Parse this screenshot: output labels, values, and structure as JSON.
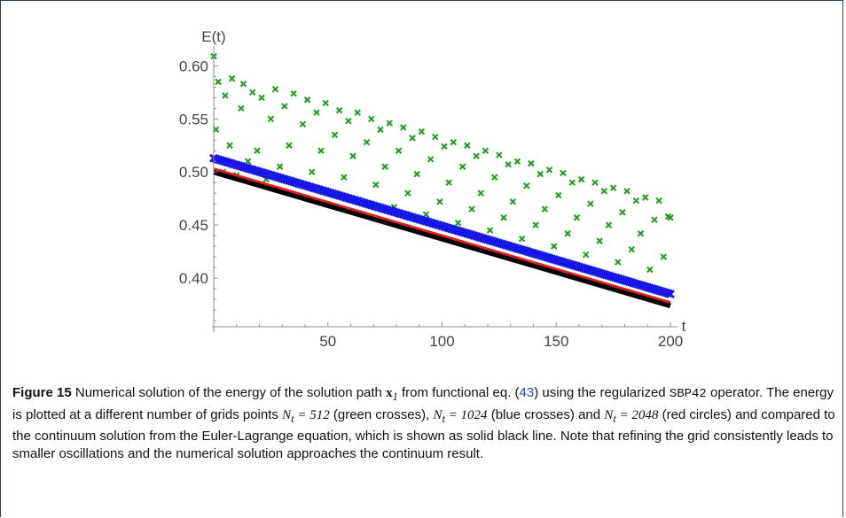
{
  "chart_data": {
    "type": "scatter",
    "title": "",
    "xlabel": "t",
    "ylabel": "E(t)",
    "xlim": [
      0,
      200
    ],
    "ylim": [
      0.355,
      0.612
    ],
    "x_ticks": [
      {
        "value": 50,
        "label": "50"
      },
      {
        "value": 100,
        "label": "100"
      },
      {
        "value": 150,
        "label": "150"
      },
      {
        "value": 200,
        "label": "200"
      }
    ],
    "y_ticks": [
      {
        "value": 0.4,
        "label": "0.40"
      },
      {
        "value": 0.45,
        "label": "0.45"
      },
      {
        "value": 0.5,
        "label": "0.50"
      },
      {
        "value": 0.55,
        "label": "0.55"
      },
      {
        "value": 0.6,
        "label": "0.60"
      }
    ],
    "series": [
      {
        "color": "#1f9b1f",
        "marker": "cross",
        "points": [
          [
            0,
            0.609
          ],
          [
            1,
            0.54
          ],
          [
            2,
            0.585
          ],
          [
            4,
            0.5
          ],
          [
            5,
            0.572
          ],
          [
            7,
            0.525
          ],
          [
            8,
            0.588
          ],
          [
            10,
            0.497
          ],
          [
            12,
            0.56
          ],
          [
            13,
            0.583
          ],
          [
            15,
            0.51
          ],
          [
            17,
            0.575
          ],
          [
            19,
            0.52
          ],
          [
            21,
            0.57
          ],
          [
            23,
            0.493
          ],
          [
            25,
            0.55
          ],
          [
            27,
            0.578
          ],
          [
            29,
            0.505
          ],
          [
            31,
            0.562
          ],
          [
            33,
            0.525
          ],
          [
            35,
            0.574
          ],
          [
            37,
            0.488
          ],
          [
            39,
            0.545
          ],
          [
            41,
            0.568
          ],
          [
            43,
            0.5
          ],
          [
            45,
            0.556
          ],
          [
            47,
            0.52
          ],
          [
            49,
            0.565
          ],
          [
            51,
            0.48
          ],
          [
            53,
            0.535
          ],
          [
            55,
            0.558
          ],
          [
            57,
            0.495
          ],
          [
            59,
            0.548
          ],
          [
            61,
            0.515
          ],
          [
            63,
            0.556
          ],
          [
            65,
            0.472
          ],
          [
            67,
            0.528
          ],
          [
            69,
            0.55
          ],
          [
            71,
            0.488
          ],
          [
            73,
            0.54
          ],
          [
            75,
            0.505
          ],
          [
            77,
            0.546
          ],
          [
            79,
            0.467
          ],
          [
            81,
            0.52
          ],
          [
            83,
            0.542
          ],
          [
            85,
            0.48
          ],
          [
            87,
            0.532
          ],
          [
            89,
            0.498
          ],
          [
            91,
            0.538
          ],
          [
            93,
            0.46
          ],
          [
            95,
            0.512
          ],
          [
            97,
            0.533
          ],
          [
            99,
            0.472
          ],
          [
            101,
            0.524
          ],
          [
            103,
            0.49
          ],
          [
            105,
            0.528
          ],
          [
            107,
            0.452
          ],
          [
            109,
            0.505
          ],
          [
            111,
            0.525
          ],
          [
            113,
            0.465
          ],
          [
            115,
            0.515
          ],
          [
            117,
            0.48
          ],
          [
            119,
            0.52
          ],
          [
            121,
            0.445
          ],
          [
            123,
            0.495
          ],
          [
            125,
            0.516
          ],
          [
            127,
            0.457
          ],
          [
            129,
            0.507
          ],
          [
            131,
            0.472
          ],
          [
            133,
            0.51
          ],
          [
            135,
            0.437
          ],
          [
            137,
            0.487
          ],
          [
            139,
            0.508
          ],
          [
            141,
            0.45
          ],
          [
            143,
            0.498
          ],
          [
            145,
            0.465
          ],
          [
            147,
            0.502
          ],
          [
            149,
            0.43
          ],
          [
            151,
            0.478
          ],
          [
            153,
            0.499
          ],
          [
            155,
            0.442
          ],
          [
            157,
            0.49
          ],
          [
            159,
            0.457
          ],
          [
            161,
            0.493
          ],
          [
            163,
            0.422
          ],
          [
            165,
            0.47
          ],
          [
            167,
            0.49
          ],
          [
            169,
            0.435
          ],
          [
            171,
            0.482
          ],
          [
            173,
            0.45
          ],
          [
            175,
            0.485
          ],
          [
            177,
            0.415
          ],
          [
            179,
            0.462
          ],
          [
            181,
            0.482
          ],
          [
            183,
            0.427
          ],
          [
            185,
            0.473
          ],
          [
            187,
            0.442
          ],
          [
            189,
            0.476
          ],
          [
            191,
            0.408
          ],
          [
            193,
            0.455
          ],
          [
            195,
            0.473
          ],
          [
            197,
            0.42
          ],
          [
            199,
            0.458
          ],
          [
            200,
            0.457
          ]
        ]
      },
      {
        "color": "#1717e6",
        "marker": "cross",
        "line": [
          [
            0,
            0.513
          ],
          [
            200,
            0.385
          ]
        ]
      },
      {
        "color": "#e01f1f",
        "marker": "circle",
        "line": [
          [
            0,
            0.503
          ],
          [
            200,
            0.377
          ]
        ]
      },
      {
        "color": "#000000",
        "marker": "line",
        "line": [
          [
            0,
            0.5
          ],
          [
            200,
            0.374
          ]
        ]
      }
    ]
  },
  "caption": {
    "label": "Figure 15",
    "t1": " Numerical solution of the energy of the solution path ",
    "x1": "x",
    "x1_sub": "1",
    "t2": " from functional eq. (",
    "ref": "43",
    "t3": ") using the regularized ",
    "op": "SBP42",
    "t4": " operator. The energy is plotted at a different number of grids points ",
    "nt": "N",
    "nt_sub": "t",
    "eq1": " = 512",
    "t5": " (green crosses), ",
    "eq2": " = 1024",
    "t6": " (blue crosses) and ",
    "eq3": " = 2048",
    "t7": " (red circles) and compared to the continuum solution from the Euler-Lagrange equation, which is shown as solid black line. Note that refining the grid consistently leads to smaller oscillations and the numerical solution approaches the continuum result."
  }
}
